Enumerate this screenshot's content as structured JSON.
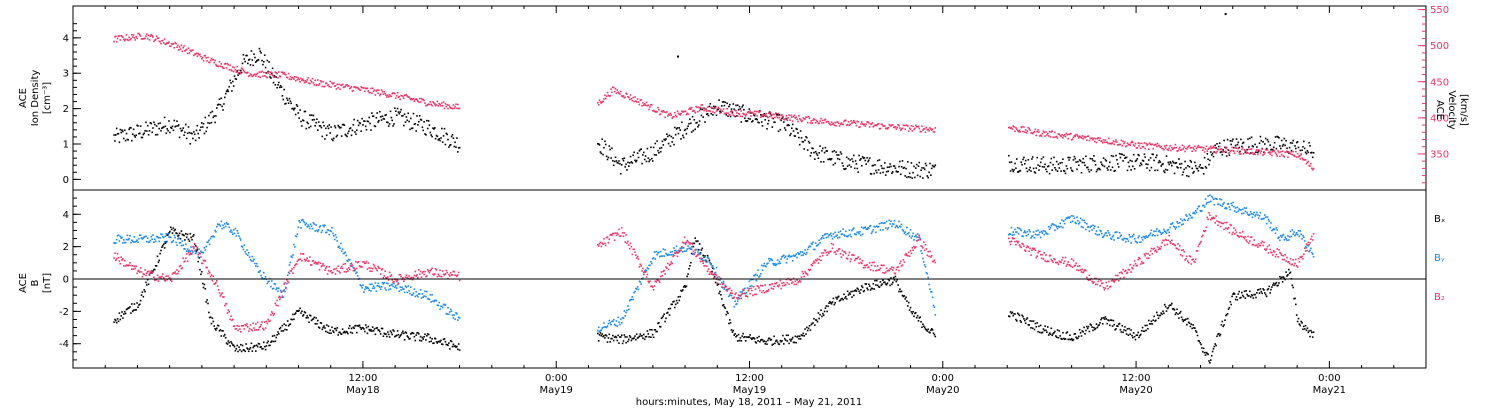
{
  "colors": {
    "black": "#000000",
    "blue": "#1b8ae6",
    "red": "#e8386a"
  },
  "chart_data": [
    {
      "type": "scatter",
      "panel": "top",
      "ylabel_lines": [
        "ACE",
        "Ion Density",
        "[cm⁻³]"
      ],
      "yticks": [
        "0",
        "1",
        "2",
        "3",
        "4"
      ],
      "ylim": [
        -0.3,
        4.9
      ],
      "right_axis": {
        "ylabel_lines": [
          "ACE",
          "Velocity",
          "[km/s]"
        ],
        "yticks": [
          "350",
          "400",
          "450",
          "500",
          "550"
        ],
        "ylim": [
          300,
          555
        ]
      },
      "x_range_hours": [
        -6,
        78
      ],
      "data_segments_hours": [
        [
          -3.5,
          18.0
        ],
        [
          26.5,
          47.5
        ],
        [
          52.0,
          71.0
        ]
      ],
      "series": [
        {
          "color": "black",
          "points": [
            [
              -3.5,
              1.2
            ],
            [
              -1.5,
              1.4
            ],
            [
              0,
              1.6
            ],
            [
              1.5,
              1.2
            ],
            [
              3,
              2.0
            ],
            [
              4.5,
              3.3
            ],
            [
              5.5,
              3.6
            ],
            [
              6.5,
              2.8
            ],
            [
              8,
              1.8
            ],
            [
              10,
              1.3
            ],
            [
              12,
              1.6
            ],
            [
              14,
              1.8
            ],
            [
              16,
              1.5
            ],
            [
              18,
              1.0
            ],
            [
              26.5,
              1.1
            ],
            [
              28,
              0.4
            ],
            [
              30,
              0.8
            ],
            [
              32,
              1.5
            ],
            [
              34,
              2.1
            ],
            [
              36,
              1.8
            ],
            [
              38,
              1.6
            ],
            [
              40,
              0.8
            ],
            [
              42,
              0.5
            ],
            [
              44,
              0.4
            ],
            [
              46,
              0.3
            ],
            [
              47.5,
              0.3
            ],
            [
              52,
              0.5
            ],
            [
              55,
              0.4
            ],
            [
              58,
              0.5
            ],
            [
              61,
              0.5
            ],
            [
              64,
              0.3
            ],
            [
              65,
              0.9
            ],
            [
              67,
              1.0
            ],
            [
              69,
              1.0
            ],
            [
              71,
              0.8
            ]
          ]
        },
        {
          "color": "red",
          "axis": "right",
          "points": [
            [
              -3.5,
              510
            ],
            [
              -1.5,
              515
            ],
            [
              0.5,
              500
            ],
            [
              2.5,
              480
            ],
            [
              5,
              462
            ],
            [
              7,
              460
            ],
            [
              9,
              450
            ],
            [
              12,
              440
            ],
            [
              14,
              432
            ],
            [
              16,
              422
            ],
            [
              18,
              415
            ],
            [
              26.5,
              420
            ],
            [
              27.5,
              440
            ],
            [
              29,
              425
            ],
            [
              31,
              403
            ],
            [
              33,
              415
            ],
            [
              35,
              408
            ],
            [
              37,
              405
            ],
            [
              39,
              400
            ],
            [
              41,
              395
            ],
            [
              43,
              392
            ],
            [
              45,
              388
            ],
            [
              47.5,
              385
            ],
            [
              52,
              388
            ],
            [
              54,
              380
            ],
            [
              56,
              375
            ],
            [
              58,
              370
            ],
            [
              60,
              363
            ],
            [
              62,
              360
            ],
            [
              64,
              358
            ],
            [
              66,
              356
            ],
            [
              68,
              353
            ],
            [
              70,
              350
            ],
            [
              71,
              330
            ]
          ]
        }
      ],
      "outliers": [
        [
          31.5,
          3.5
        ],
        [
          65.5,
          4.7
        ]
      ]
    },
    {
      "type": "scatter",
      "panel": "bottom",
      "ylabel_lines": [
        "ACE",
        "B",
        "[nT]"
      ],
      "yticks": [
        "-4",
        "-2",
        "0",
        "2",
        "4"
      ],
      "ylim": [
        -5.5,
        5.5
      ],
      "legend": [
        "Bₓ",
        "Bᵧ",
        "B₂"
      ],
      "x_range_hours": [
        -6,
        78
      ],
      "data_segments_hours": [
        [
          -3.5,
          18.0
        ],
        [
          26.5,
          47.5
        ],
        [
          52.0,
          71.0
        ]
      ],
      "series": [
        {
          "name": "Bₓ",
          "color": "black",
          "points": [
            [
              -3.5,
              -2.5
            ],
            [
              -2,
              -1.5
            ],
            [
              0,
              3.0
            ],
            [
              1.5,
              2.5
            ],
            [
              2.5,
              -2.5
            ],
            [
              4,
              -4.3
            ],
            [
              6,
              -4.1
            ],
            [
              8,
              -2.0
            ],
            [
              10,
              -3.2
            ],
            [
              12,
              -3.0
            ],
            [
              14,
              -3.4
            ],
            [
              16,
              -3.6
            ],
            [
              18,
              -4.2
            ],
            [
              26.5,
              -3.5
            ],
            [
              28,
              -3.7
            ],
            [
              30,
              -3.3
            ],
            [
              32,
              -0.5
            ],
            [
              32.5,
              2.5
            ],
            [
              33.5,
              1.0
            ],
            [
              35,
              -3.5
            ],
            [
              37,
              -3.8
            ],
            [
              39,
              -3.6
            ],
            [
              41,
              -1.5
            ],
            [
              43,
              -0.5
            ],
            [
              45,
              0.0
            ],
            [
              46,
              -2.0
            ],
            [
              47.5,
              -3.5
            ],
            [
              52,
              -2.0
            ],
            [
              54,
              -3.0
            ],
            [
              56,
              -3.6
            ],
            [
              58,
              -2.5
            ],
            [
              60,
              -3.5
            ],
            [
              62,
              -1.5
            ],
            [
              63.5,
              -3.0
            ],
            [
              64.5,
              -5.0
            ],
            [
              66,
              -1.0
            ],
            [
              68,
              -0.8
            ],
            [
              69.5,
              0.5
            ],
            [
              70,
              -2.5
            ],
            [
              71,
              -3.5
            ]
          ]
        },
        {
          "name": "Bᵧ",
          "color": "blue",
          "points": [
            [
              -3.5,
              2.5
            ],
            [
              -1.5,
              2.5
            ],
            [
              0,
              2.6
            ],
            [
              2,
              1.5
            ],
            [
              3,
              3.5
            ],
            [
              4,
              3.0
            ],
            [
              5.5,
              0.5
            ],
            [
              7,
              -1.0
            ],
            [
              8,
              3.5
            ],
            [
              10,
              3.0
            ],
            [
              12,
              -0.5
            ],
            [
              14,
              -0.4
            ],
            [
              16,
              -1.0
            ],
            [
              18,
              -2.5
            ],
            [
              26.5,
              -3.0
            ],
            [
              28,
              -2.5
            ],
            [
              30,
              1.5
            ],
            [
              32,
              2.0
            ],
            [
              33.5,
              1.2
            ],
            [
              35,
              -1.5
            ],
            [
              37,
              1.0
            ],
            [
              39,
              1.5
            ],
            [
              41,
              2.8
            ],
            [
              43,
              3.0
            ],
            [
              45,
              3.5
            ],
            [
              46.5,
              2.5
            ],
            [
              47.5,
              -2.0
            ],
            [
              52,
              3.0
            ],
            [
              54,
              2.8
            ],
            [
              56,
              3.8
            ],
            [
              58,
              2.8
            ],
            [
              60,
              2.5
            ],
            [
              62,
              3.2
            ],
            [
              63.5,
              4.0
            ],
            [
              64.5,
              5.0
            ],
            [
              66,
              4.5
            ],
            [
              68,
              3.8
            ],
            [
              69,
              2.5
            ],
            [
              70,
              3.0
            ],
            [
              71,
              1.5
            ]
          ]
        },
        {
          "name": "B₂",
          "color": "red",
          "points": [
            [
              -3.5,
              1.5
            ],
            [
              -2,
              0.5
            ],
            [
              0,
              0.0
            ],
            [
              1.5,
              2.0
            ],
            [
              3,
              -0.5
            ],
            [
              4,
              -3.0
            ],
            [
              6,
              -2.8
            ],
            [
              8,
              1.5
            ],
            [
              10,
              0.5
            ],
            [
              12,
              1.0
            ],
            [
              14,
              0.0
            ],
            [
              16,
              0.5
            ],
            [
              18,
              0.2
            ],
            [
              26.5,
              2.0
            ],
            [
              28,
              3.0
            ],
            [
              30,
              -0.5
            ],
            [
              32,
              2.5
            ],
            [
              33.5,
              0.5
            ],
            [
              35,
              -1.0
            ],
            [
              37,
              -0.5
            ],
            [
              39,
              0.0
            ],
            [
              41,
              2.0
            ],
            [
              43,
              1.0
            ],
            [
              45,
              0.5
            ],
            [
              46.5,
              2.5
            ],
            [
              47.5,
              1.0
            ],
            [
              52,
              2.5
            ],
            [
              54,
              1.5
            ],
            [
              56,
              1.0
            ],
            [
              58,
              -0.5
            ],
            [
              60,
              1.0
            ],
            [
              62,
              2.5
            ],
            [
              63.5,
              1.0
            ],
            [
              64.5,
              4.0
            ],
            [
              66,
              3.0
            ],
            [
              68,
              2.0
            ],
            [
              69,
              1.5
            ],
            [
              70,
              1.0
            ],
            [
              71,
              2.8
            ]
          ]
        }
      ]
    }
  ],
  "xaxis": {
    "ticks": [
      {
        "hour": 12,
        "line1": "12:00",
        "line2": "May18"
      },
      {
        "hour": 24,
        "line1": "0:00",
        "line2": "May19"
      },
      {
        "hour": 36,
        "line1": "12:00",
        "line2": "May19"
      },
      {
        "hour": 48,
        "line1": "0:00",
        "line2": "May20"
      },
      {
        "hour": 60,
        "line1": "12:00",
        "line2": "May20"
      },
      {
        "hour": 72,
        "line1": "0:00",
        "line2": "May21"
      }
    ],
    "title": "hours:minutes, May 18, 2011 – May 21, 2011"
  }
}
